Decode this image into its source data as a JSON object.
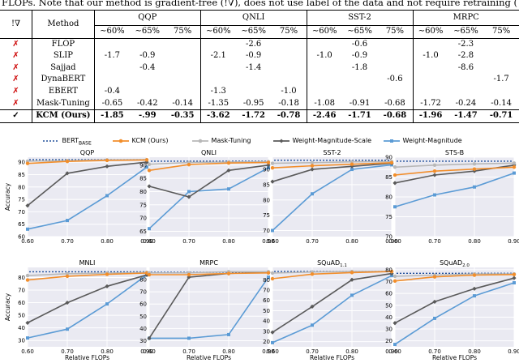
{
  "caption": "FLOPs. Note that our method is gradient-free (!∇), does not use label of the data and not require retraining (more detail in Table 1)",
  "table": {
    "corner": "!∇",
    "method_header": "Method",
    "groups": [
      "QQP",
      "QNLI",
      "SST-2",
      "MRPC"
    ],
    "subheaders": [
      "∼60%",
      "∼65%",
      "75%"
    ],
    "rows": [
      {
        "mark": "✗",
        "method": "FLOP",
        "cells": [
          "",
          "",
          "",
          "",
          "-2.6",
          "",
          "",
          "-0.6",
          "",
          "",
          "-2.3",
          ""
        ]
      },
      {
        "mark": "✗",
        "method": "SLIP",
        "cells": [
          "-1.7",
          "-0.9",
          "",
          "-2.1",
          "-0.9",
          "",
          "-1.0",
          "-0.9",
          "",
          "-1.0",
          "-2.8",
          ""
        ]
      },
      {
        "mark": "✗",
        "method": "Sajjad",
        "cells": [
          "",
          "-0.4",
          "",
          "",
          "-1.4",
          "",
          "",
          "-1.8",
          "",
          "",
          "-8.6",
          ""
        ]
      },
      {
        "mark": "✗",
        "method": "DynaBERT",
        "cells": [
          "",
          "",
          "",
          "",
          "",
          "",
          "",
          "",
          "-0.6",
          "",
          "",
          "-1.7"
        ]
      },
      {
        "mark": "✗",
        "method": "EBERT",
        "cells": [
          "-0.4",
          "",
          "",
          "-1.3",
          "",
          "-1.0",
          "",
          "",
          "",
          "",
          "",
          ""
        ]
      },
      {
        "mark": "✗",
        "method": "Mask-Tuning",
        "cells": [
          "-0.65",
          "-0.42",
          "-0.14",
          "-1.35",
          "-0.95",
          "-0.18",
          "-1.08",
          "-0.91",
          "-0.68",
          "-1.72",
          "-0.24",
          "-0.14"
        ]
      },
      {
        "mark": "✓",
        "method": "KCM (Ours)",
        "cells": [
          "-1.85",
          "-.99",
          "-0.35",
          "-3.62",
          "-1.72",
          "-0.78",
          "-2.46",
          "-1.71",
          "-0.68",
          "-1.96",
          "-1.47",
          "-0.71"
        ]
      }
    ]
  },
  "legend": {
    "bert_prefix": "BERT",
    "bert_sub": "BASE",
    "items": [
      "KCM (Ours)",
      "Mask-Tuning",
      "Weight-Magnitude-Scale",
      "Weight-Magnitude"
    ]
  },
  "colors": {
    "bert": "#1f4e9a",
    "kcm": "#f28e2b",
    "mask": "#b8b8b8",
    "wms": "#5a5a5a",
    "wm": "#5b9bd5",
    "cross": "#cc0000"
  },
  "chart_data": [
    {
      "type": "line",
      "title": "QQP",
      "title_sub": "",
      "xlabel": "",
      "ylabel": "Accuracy",
      "ylim": [
        60,
        92
      ],
      "yticks": [
        60,
        65,
        70,
        75,
        80,
        85,
        90
      ],
      "xlim": [
        0.6,
        0.9
      ],
      "xticks": [
        "0.60",
        "0.70",
        "0.80",
        "0.90"
      ],
      "bert": 91,
      "series": [
        {
          "name": "KCM (Ours)",
          "x": [
            0.6,
            0.7,
            0.8,
            0.9
          ],
          "values": [
            89.5,
            90.3,
            90.7,
            90.9
          ]
        },
        {
          "name": "Mask-Tuning",
          "x": [
            0.6,
            0.7,
            0.8,
            0.9
          ],
          "values": [
            90.4,
            90.6,
            90.9,
            91.0
          ]
        },
        {
          "name": "Weight-Magnitude-Scale",
          "x": [
            0.6,
            0.7,
            0.8,
            0.9
          ],
          "values": [
            72.5,
            85.5,
            88.3,
            90.0
          ]
        },
        {
          "name": "Weight-Magnitude",
          "x": [
            0.6,
            0.7,
            0.8,
            0.9
          ],
          "values": [
            63.0,
            66.5,
            76.5,
            88.0
          ]
        }
      ]
    },
    {
      "type": "line",
      "title": "QNLI",
      "title_sub": "",
      "xlabel": "",
      "ylabel": "",
      "ylim": [
        63,
        93
      ],
      "yticks": [
        65,
        70,
        75,
        80,
        85,
        90
      ],
      "xlim": [
        0.6,
        0.9
      ],
      "xticks": [
        "0.60",
        "0.70",
        "0.80",
        "0.90"
      ],
      "bert": 91.5,
      "series": [
        {
          "name": "KCM (Ours)",
          "x": [
            0.6,
            0.7,
            0.8,
            0.9
          ],
          "values": [
            88.0,
            90.2,
            90.8,
            91.0
          ]
        },
        {
          "name": "Mask-Tuning",
          "x": [
            0.6,
            0.7,
            0.8,
            0.9
          ],
          "values": [
            90.3,
            91.0,
            91.2,
            91.3
          ]
        },
        {
          "name": "Weight-Magnitude-Scale",
          "x": [
            0.6,
            0.7,
            0.8,
            0.9
          ],
          "values": [
            82.0,
            78.0,
            88.0,
            90.0
          ]
        },
        {
          "name": "Weight-Magnitude",
          "x": [
            0.6,
            0.7,
            0.8,
            0.9
          ],
          "values": [
            66.0,
            80.0,
            81.0,
            89.0
          ]
        }
      ]
    },
    {
      "type": "line",
      "title": "SST-2",
      "title_sub": "",
      "xlabel": "",
      "ylabel": "",
      "ylim": [
        68,
        94
      ],
      "yticks": [
        70,
        75,
        80,
        85,
        90
      ],
      "xlim": [
        0.6,
        0.9
      ],
      "xticks": [
        "0.60",
        "0.70",
        "0.80",
        "0.90"
      ],
      "bert": 93,
      "series": [
        {
          "name": "KCM (Ours)",
          "x": [
            0.6,
            0.7,
            0.8,
            0.9
          ],
          "values": [
            90.5,
            91.2,
            91.7,
            92.2
          ]
        },
        {
          "name": "Mask-Tuning",
          "x": [
            0.6,
            0.7,
            0.8,
            0.9
          ],
          "values": [
            92.0,
            92.2,
            92.5,
            92.6
          ]
        },
        {
          "name": "Weight-Magnitude-Scale",
          "x": [
            0.6,
            0.7,
            0.8,
            0.9
          ],
          "values": [
            86.0,
            90.0,
            91.0,
            92.0
          ]
        },
        {
          "name": "Weight-Magnitude",
          "x": [
            0.6,
            0.7,
            0.8,
            0.9
          ],
          "values": [
            70.0,
            82.0,
            90.0,
            91.5
          ]
        }
      ]
    },
    {
      "type": "line",
      "title": "STS-B",
      "title_sub": "",
      "xlabel": "",
      "ylabel": "",
      "ylim": [
        70,
        90
      ],
      "yticks": [
        70,
        75,
        80,
        85,
        90
      ],
      "xlim": [
        0.6,
        0.9
      ],
      "xticks": [
        "0.60",
        "0.70",
        "0.80",
        "0.90"
      ],
      "bert": 89,
      "series": [
        {
          "name": "KCM (Ours)",
          "x": [
            0.6,
            0.7,
            0.8,
            0.9
          ],
          "values": [
            85.5,
            86.5,
            87.0,
            87.5
          ]
        },
        {
          "name": "Mask-Tuning",
          "x": [
            0.6,
            0.7,
            0.8,
            0.9
          ],
          "values": [
            87.5,
            88.0,
            88.3,
            88.5
          ]
        },
        {
          "name": "Weight-Magnitude-Scale",
          "x": [
            0.6,
            0.7,
            0.8,
            0.9
          ],
          "values": [
            83.5,
            85.5,
            86.5,
            88.0
          ]
        },
        {
          "name": "Weight-Magnitude",
          "x": [
            0.6,
            0.7,
            0.8,
            0.9
          ],
          "values": [
            77.5,
            80.5,
            82.5,
            86.0
          ]
        }
      ]
    },
    {
      "type": "line",
      "title": "MNLI",
      "title_sub": "",
      "xlabel": "Relative FLOPs",
      "ylabel": "Accuracy",
      "ylim": [
        25,
        88
      ],
      "yticks": [
        30,
        40,
        50,
        60,
        70,
        80
      ],
      "xlim": [
        0.6,
        0.9
      ],
      "xticks": [
        "0.60",
        "0.70",
        "0.80",
        "0.90"
      ],
      "bert": 84.5,
      "series": [
        {
          "name": "KCM (Ours)",
          "x": [
            0.6,
            0.7,
            0.8,
            0.9
          ],
          "values": [
            78.0,
            81.0,
            82.5,
            83.5
          ]
        },
        {
          "name": "Mask-Tuning",
          "x": [
            0.6,
            0.7,
            0.8,
            0.9
          ],
          "values": [
            81.5,
            83.0,
            83.5,
            84.0
          ]
        },
        {
          "name": "Weight-Magnitude-Scale",
          "x": [
            0.6,
            0.7,
            0.8,
            0.9
          ],
          "values": [
            44.0,
            60.0,
            73.0,
            82.0
          ]
        },
        {
          "name": "Weight-Magnitude",
          "x": [
            0.6,
            0.7,
            0.8,
            0.9
          ],
          "values": [
            32.0,
            39.0,
            59.0,
            82.0
          ]
        }
      ]
    },
    {
      "type": "line",
      "title": "MRPC",
      "title_sub": "",
      "xlabel": "Relative FLOPs",
      "ylabel": "",
      "ylim": [
        25,
        90
      ],
      "yticks": [
        30,
        40,
        50,
        60,
        70,
        80
      ],
      "xlim": [
        0.6,
        0.9
      ],
      "xticks": [
        "0.60",
        "0.70",
        "0.80",
        "0.90"
      ],
      "bert": 86,
      "series": [
        {
          "name": "KCM (Ours)",
          "x": [
            0.6,
            0.7,
            0.8,
            0.9
          ],
          "values": [
            84.0,
            84.0,
            85.0,
            85.5
          ]
        },
        {
          "name": "Mask-Tuning",
          "x": [
            0.6,
            0.7,
            0.8,
            0.9
          ],
          "values": [
            85.5,
            85.5,
            86.5,
            86.5
          ]
        },
        {
          "name": "Weight-Magnitude-Scale",
          "x": [
            0.6,
            0.7,
            0.8,
            0.9
          ],
          "values": [
            32.0,
            82.0,
            85.0,
            86.0
          ]
        },
        {
          "name": "Weight-Magnitude",
          "x": [
            0.6,
            0.7,
            0.8,
            0.9
          ],
          "values": [
            32.0,
            32.0,
            35.0,
            82.0
          ]
        }
      ]
    },
    {
      "type": "line",
      "title": "SQuAD",
      "title_sub": "1.1",
      "xlabel": "Relative FLOPs",
      "ylabel": "",
      "ylim": [
        15,
        92
      ],
      "yticks": [
        20,
        30,
        40,
        50,
        60,
        70,
        80
      ],
      "xlim": [
        0.6,
        0.9
      ],
      "xticks": [
        "0.60",
        "0.70",
        "0.80",
        "0.90"
      ],
      "bert": 88,
      "series": [
        {
          "name": "KCM (Ours)",
          "x": [
            0.6,
            0.7,
            0.8,
            0.9
          ],
          "values": [
            81.0,
            85.5,
            87.0,
            88.0
          ]
        },
        {
          "name": "Mask-Tuning",
          "x": [
            0.6,
            0.7,
            0.8,
            0.9
          ],
          "values": [
            86.5,
            87.5,
            88.0,
            88.0
          ]
        },
        {
          "name": "Weight-Magnitude-Scale",
          "x": [
            0.6,
            0.7,
            0.8,
            0.9
          ],
          "values": [
            29.0,
            54.0,
            80.0,
            86.0
          ]
        },
        {
          "name": "Weight-Magnitude",
          "x": [
            0.6,
            0.7,
            0.8,
            0.9
          ],
          "values": [
            19.0,
            36.0,
            65.0,
            84.0
          ]
        }
      ]
    },
    {
      "type": "line",
      "title": "SQuAD",
      "title_sub": "2.0",
      "xlabel": "Relative FLOPs",
      "ylabel": "",
      "ylim": [
        15,
        82
      ],
      "yticks": [
        20,
        30,
        40,
        50,
        60,
        70,
        80
      ],
      "xlim": [
        0.6,
        0.9
      ],
      "xticks": [
        "0.60",
        "0.70",
        "0.80",
        "0.90"
      ],
      "bert": 77,
      "series": [
        {
          "name": "KCM (Ours)",
          "x": [
            0.6,
            0.7,
            0.8,
            0.9
          ],
          "values": [
            70.5,
            74.0,
            75.5,
            76.0
          ]
        },
        {
          "name": "Mask-Tuning",
          "x": [
            0.6,
            0.7,
            0.8,
            0.9
          ],
          "values": [
            74.5,
            75.5,
            76.5,
            76.5
          ]
        },
        {
          "name": "Weight-Magnitude-Scale",
          "x": [
            0.6,
            0.7,
            0.8,
            0.9
          ],
          "values": [
            35.0,
            53.0,
            64.0,
            73.0
          ]
        },
        {
          "name": "Weight-Magnitude",
          "x": [
            0.6,
            0.7,
            0.8,
            0.9
          ],
          "values": [
            17.0,
            39.0,
            58.0,
            69.0
          ]
        }
      ]
    }
  ]
}
